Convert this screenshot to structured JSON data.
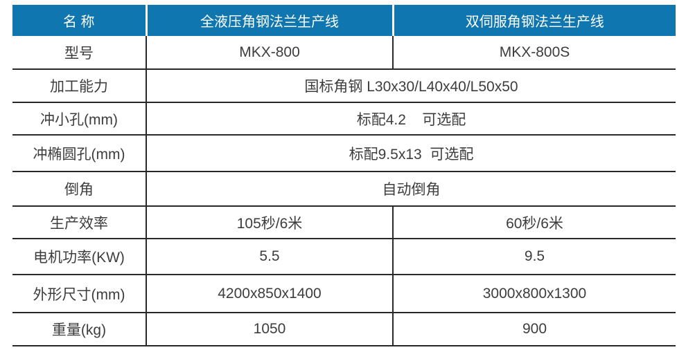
{
  "table": {
    "header": [
      "名 称",
      "全液压角钢法兰生产线",
      "双伺服角钢法兰生产线"
    ],
    "rows": [
      {
        "label": "型号",
        "span": false,
        "col1": "MKX-800",
        "col2": "MKX-800S"
      },
      {
        "label": "加工能力",
        "span": true,
        "value": "国标角钢 L30x30/L40x40/L50x50"
      },
      {
        "label": "冲小孔(mm)",
        "span": true,
        "value": "标配4.2    可选配"
      },
      {
        "label": "冲椭圆孔(mm)",
        "span": true,
        "value": "标配9.5x13  可选配"
      },
      {
        "label": "倒角",
        "span": true,
        "value": "自动倒角"
      },
      {
        "label": "生产效率",
        "span": false,
        "col1": "105秒/6米",
        "col2": "60秒/6米"
      },
      {
        "label": "电机功率(KW)",
        "span": false,
        "col1": "5.5",
        "col2": "9.5"
      },
      {
        "label": "外形尺寸(mm)",
        "span": false,
        "col1": "4200x850x1400",
        "col2": "3000x800x1300"
      },
      {
        "label": "重量(kg)",
        "span": false,
        "col1": "1050",
        "col2": "900"
      }
    ],
    "colors": {
      "header_bg": "#0f76b0",
      "header_text": "#ffffff",
      "body_text": "#3d3d3d",
      "border": "#282828"
    }
  }
}
